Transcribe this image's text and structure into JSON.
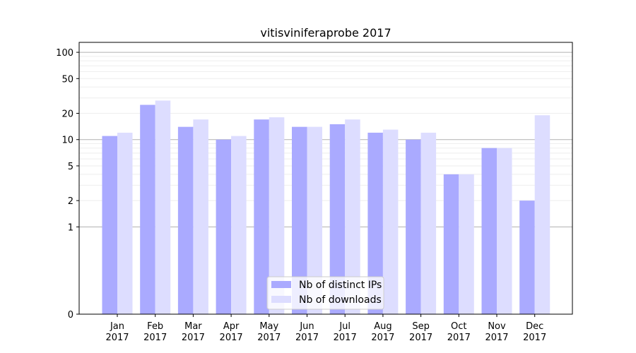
{
  "chart_data": {
    "type": "bar",
    "title": "vitisviniferaprobe 2017",
    "xlabel": "",
    "ylabel": "",
    "scale": "symlog",
    "ylim": [
      0,
      130
    ],
    "grid": "horizontal",
    "yticks": [
      0,
      1,
      2,
      5,
      10,
      20,
      50,
      100
    ],
    "ytick_labels": [
      "0",
      "1",
      "2",
      "5",
      "10",
      "20",
      "50",
      "100"
    ],
    "categories": [
      "Jan\n2017",
      "Feb\n2017",
      "Mar\n2017",
      "Apr\n2017",
      "May\n2017",
      "Jun\n2017",
      "Jul\n2017",
      "Aug\n2017",
      "Sep\n2017",
      "Oct\n2017",
      "Nov\n2017",
      "Dec\n2017"
    ],
    "series": [
      {
        "name": "Nb of distinct IPs",
        "color": "#aaaaff",
        "values": [
          11,
          25,
          14,
          10,
          17,
          14,
          15,
          12,
          10,
          4,
          8,
          2
        ]
      },
      {
        "name": "Nb of downloads",
        "color": "#ddddff",
        "values": [
          12,
          28,
          17,
          11,
          18,
          14,
          17,
          13,
          12,
          4,
          8,
          19
        ]
      }
    ],
    "legend": "lower-center"
  }
}
